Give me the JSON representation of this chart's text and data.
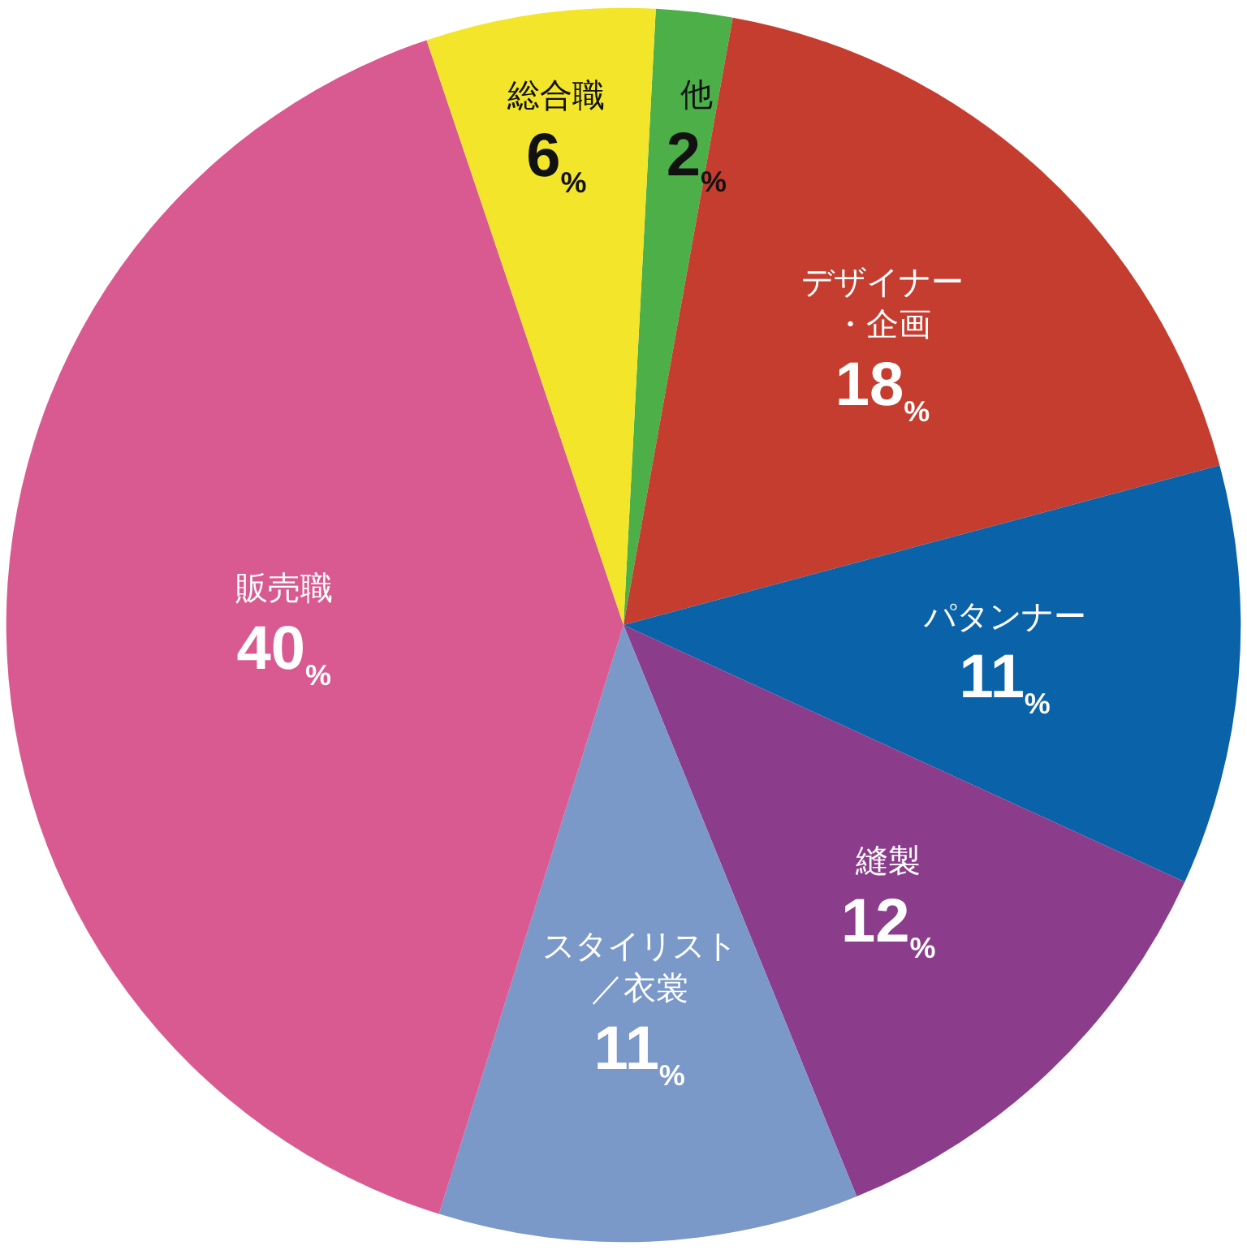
{
  "chart_data": {
    "type": "pie",
    "categories": [
      "他",
      "デザイナー・企画",
      "パタンナー",
      "縫製",
      "スタイリスト／衣裳",
      "販売職",
      "総合職"
    ],
    "values": [
      2,
      18,
      11,
      12,
      11,
      40,
      6
    ],
    "value_labels": [
      "2%",
      "18%",
      "11%",
      "12%",
      "11%",
      "40%",
      "6%"
    ],
    "colors": [
      "#4caf48",
      "#c53d2e",
      "#0a62a8",
      "#8b3d8c",
      "#7a98c8",
      "#d95a90",
      "#f2e52a"
    ],
    "legend": false
  }
}
